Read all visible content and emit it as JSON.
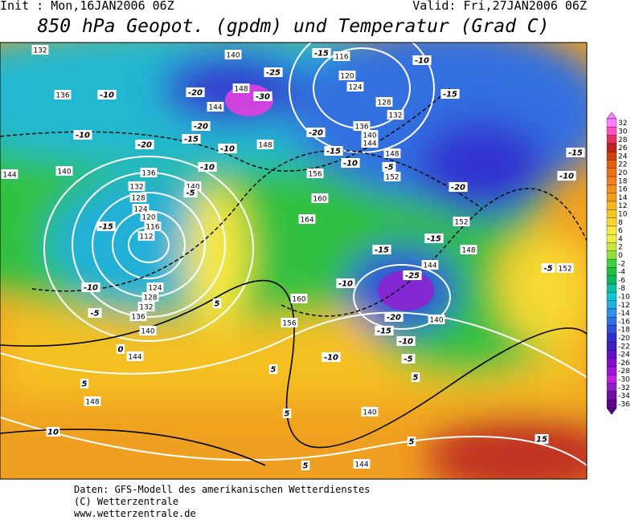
{
  "header": {
    "init": "Init : Mon,16JAN2006 06Z",
    "valid": "Valid: Fri,27JAN2006 06Z",
    "title": "850 hPa Geopot. (gpdm) und Temperatur (Grad C)"
  },
  "map": {
    "geopotential_labels": [
      "132",
      "140",
      "116",
      "120",
      "124",
      "148",
      "144",
      "128",
      "132",
      "136",
      "136",
      "140",
      "144",
      "148",
      "148",
      "144",
      "140",
      "136",
      "132",
      "128",
      "124",
      "120",
      "116",
      "112",
      "156",
      "152",
      "140",
      "160",
      "164",
      "152",
      "148",
      "144",
      "152",
      "124",
      "128",
      "132",
      "136",
      "160",
      "156",
      "140",
      "140",
      "144",
      "148",
      "140",
      "144"
    ],
    "temperature_labels": [
      "-15",
      "-10",
      "-25",
      "-10",
      "-20",
      "-30",
      "-15",
      "-20",
      "-10",
      "-20",
      "-15",
      "-10",
      "-20",
      "-15",
      "-10",
      "-5",
      "-15",
      "-10",
      "-10",
      "-5",
      "-20",
      "-15",
      "-15",
      "-15",
      "-25",
      "-10",
      "-5",
      "-10",
      "-5",
      "5",
      "-20",
      "-15",
      "-10",
      "0",
      "-10",
      "-5",
      "5",
      "5",
      "5",
      "5",
      "10",
      "5",
      "15",
      "5"
    ]
  },
  "colorbar": {
    "labels": [
      "32",
      "30",
      "28",
      "26",
      "24",
      "22",
      "20",
      "18",
      "16",
      "14",
      "12",
      "10",
      "8",
      "6",
      "4",
      "2",
      "0",
      "-2",
      "-4",
      "-6",
      "-8",
      "-10",
      "-12",
      "-14",
      "-16",
      "-18",
      "-20",
      "-22",
      "-24",
      "-26",
      "-28",
      "-30",
      "-32",
      "-34",
      "-36"
    ],
    "colors": [
      "#ff80ff",
      "#ff50c0",
      "#e83060",
      "#c02020",
      "#d04010",
      "#e06010",
      "#e87010",
      "#f08020",
      "#f09020",
      "#f0a020",
      "#f5b820",
      "#f5c820",
      "#f8d830",
      "#f8e840",
      "#f0f040",
      "#c8e840",
      "#90e040",
      "#40d040",
      "#20c040",
      "#10b860",
      "#10c0a0",
      "#10c8d0",
      "#20b0e0",
      "#3090e8",
      "#3070e0",
      "#3050d8",
      "#3030d0",
      "#4020c0",
      "#6010c8",
      "#8010d0",
      "#a010d8",
      "#c020e0",
      "#9020c0",
      "#7010a0",
      "#600090"
    ]
  },
  "footer": {
    "source": "Daten: GFS-Modell des amerikanischen Wetterdienstes",
    "copyright": "(C) Wetterzentrale",
    "url": "www.wetterzentrale.de"
  }
}
